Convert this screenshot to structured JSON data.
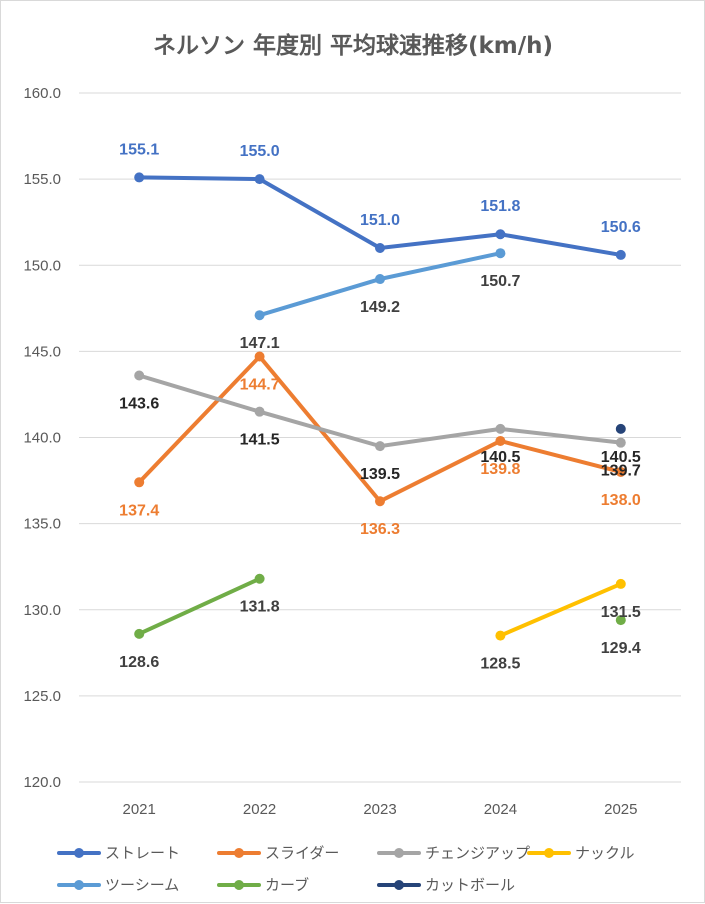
{
  "chart_data": {
    "type": "line",
    "title": "ネルソン 年度別 平均球速推移(km/h)",
    "categories": [
      "2021",
      "2022",
      "2023",
      "2024",
      "2025"
    ],
    "ylim": [
      120,
      160
    ],
    "yticks": [
      "120.0",
      "125.0",
      "130.0",
      "135.0",
      "140.0",
      "145.0",
      "150.0",
      "155.0",
      "160.0"
    ],
    "grid": true,
    "legend_position": "bottom",
    "series": [
      {
        "name": "ストレート",
        "color": "#4472C4",
        "values": [
          155.1,
          155.0,
          151.0,
          151.8,
          150.6
        ],
        "labels": [
          "155.1",
          "155.0",
          "151.0",
          "151.8",
          "150.6"
        ],
        "label_color": "#4472C4",
        "label_pos": "above"
      },
      {
        "name": "スライダー",
        "color": "#ED7D31",
        "values": [
          137.4,
          144.7,
          136.3,
          139.8,
          138.0
        ],
        "labels": [
          "137.4",
          "144.7",
          "136.3",
          "139.8",
          "138.0"
        ],
        "label_color": "#ED7D31",
        "label_pos": "below"
      },
      {
        "name": "チェンジアップ",
        "color": "#A5A5A5",
        "values": [
          143.6,
          141.5,
          139.5,
          140.5,
          139.7
        ],
        "labels": [
          "143.6",
          "141.5",
          "139.5",
          "140.5",
          "139.7"
        ],
        "label_color": "#262626",
        "label_pos": "below"
      },
      {
        "name": "ナックル",
        "color": "#FFC000",
        "values": [
          null,
          null,
          null,
          128.5,
          131.5
        ],
        "labels": [
          null,
          null,
          null,
          "128.5",
          "131.5"
        ],
        "label_color": "#404040",
        "label_pos": "below"
      },
      {
        "name": "ツーシーム",
        "color": "#5B9BD5",
        "values": [
          null,
          147.1,
          149.2,
          150.7,
          null
        ],
        "labels": [
          null,
          "147.1",
          "149.2",
          "150.7",
          null
        ],
        "label_color": "#404040",
        "label_pos": "below"
      },
      {
        "name": "カーブ",
        "color": "#70AD47",
        "values": [
          128.6,
          131.8,
          null,
          null,
          129.4
        ],
        "labels": [
          "128.6",
          "131.8",
          null,
          null,
          "129.4"
        ],
        "label_color": "#404040",
        "label_pos": "below"
      },
      {
        "name": "カットボール",
        "color": "#264478",
        "values": [
          null,
          null,
          null,
          null,
          140.5
        ],
        "labels": [
          null,
          null,
          null,
          null,
          "140.5"
        ],
        "label_color": "#262626",
        "label_pos": "below"
      }
    ]
  }
}
